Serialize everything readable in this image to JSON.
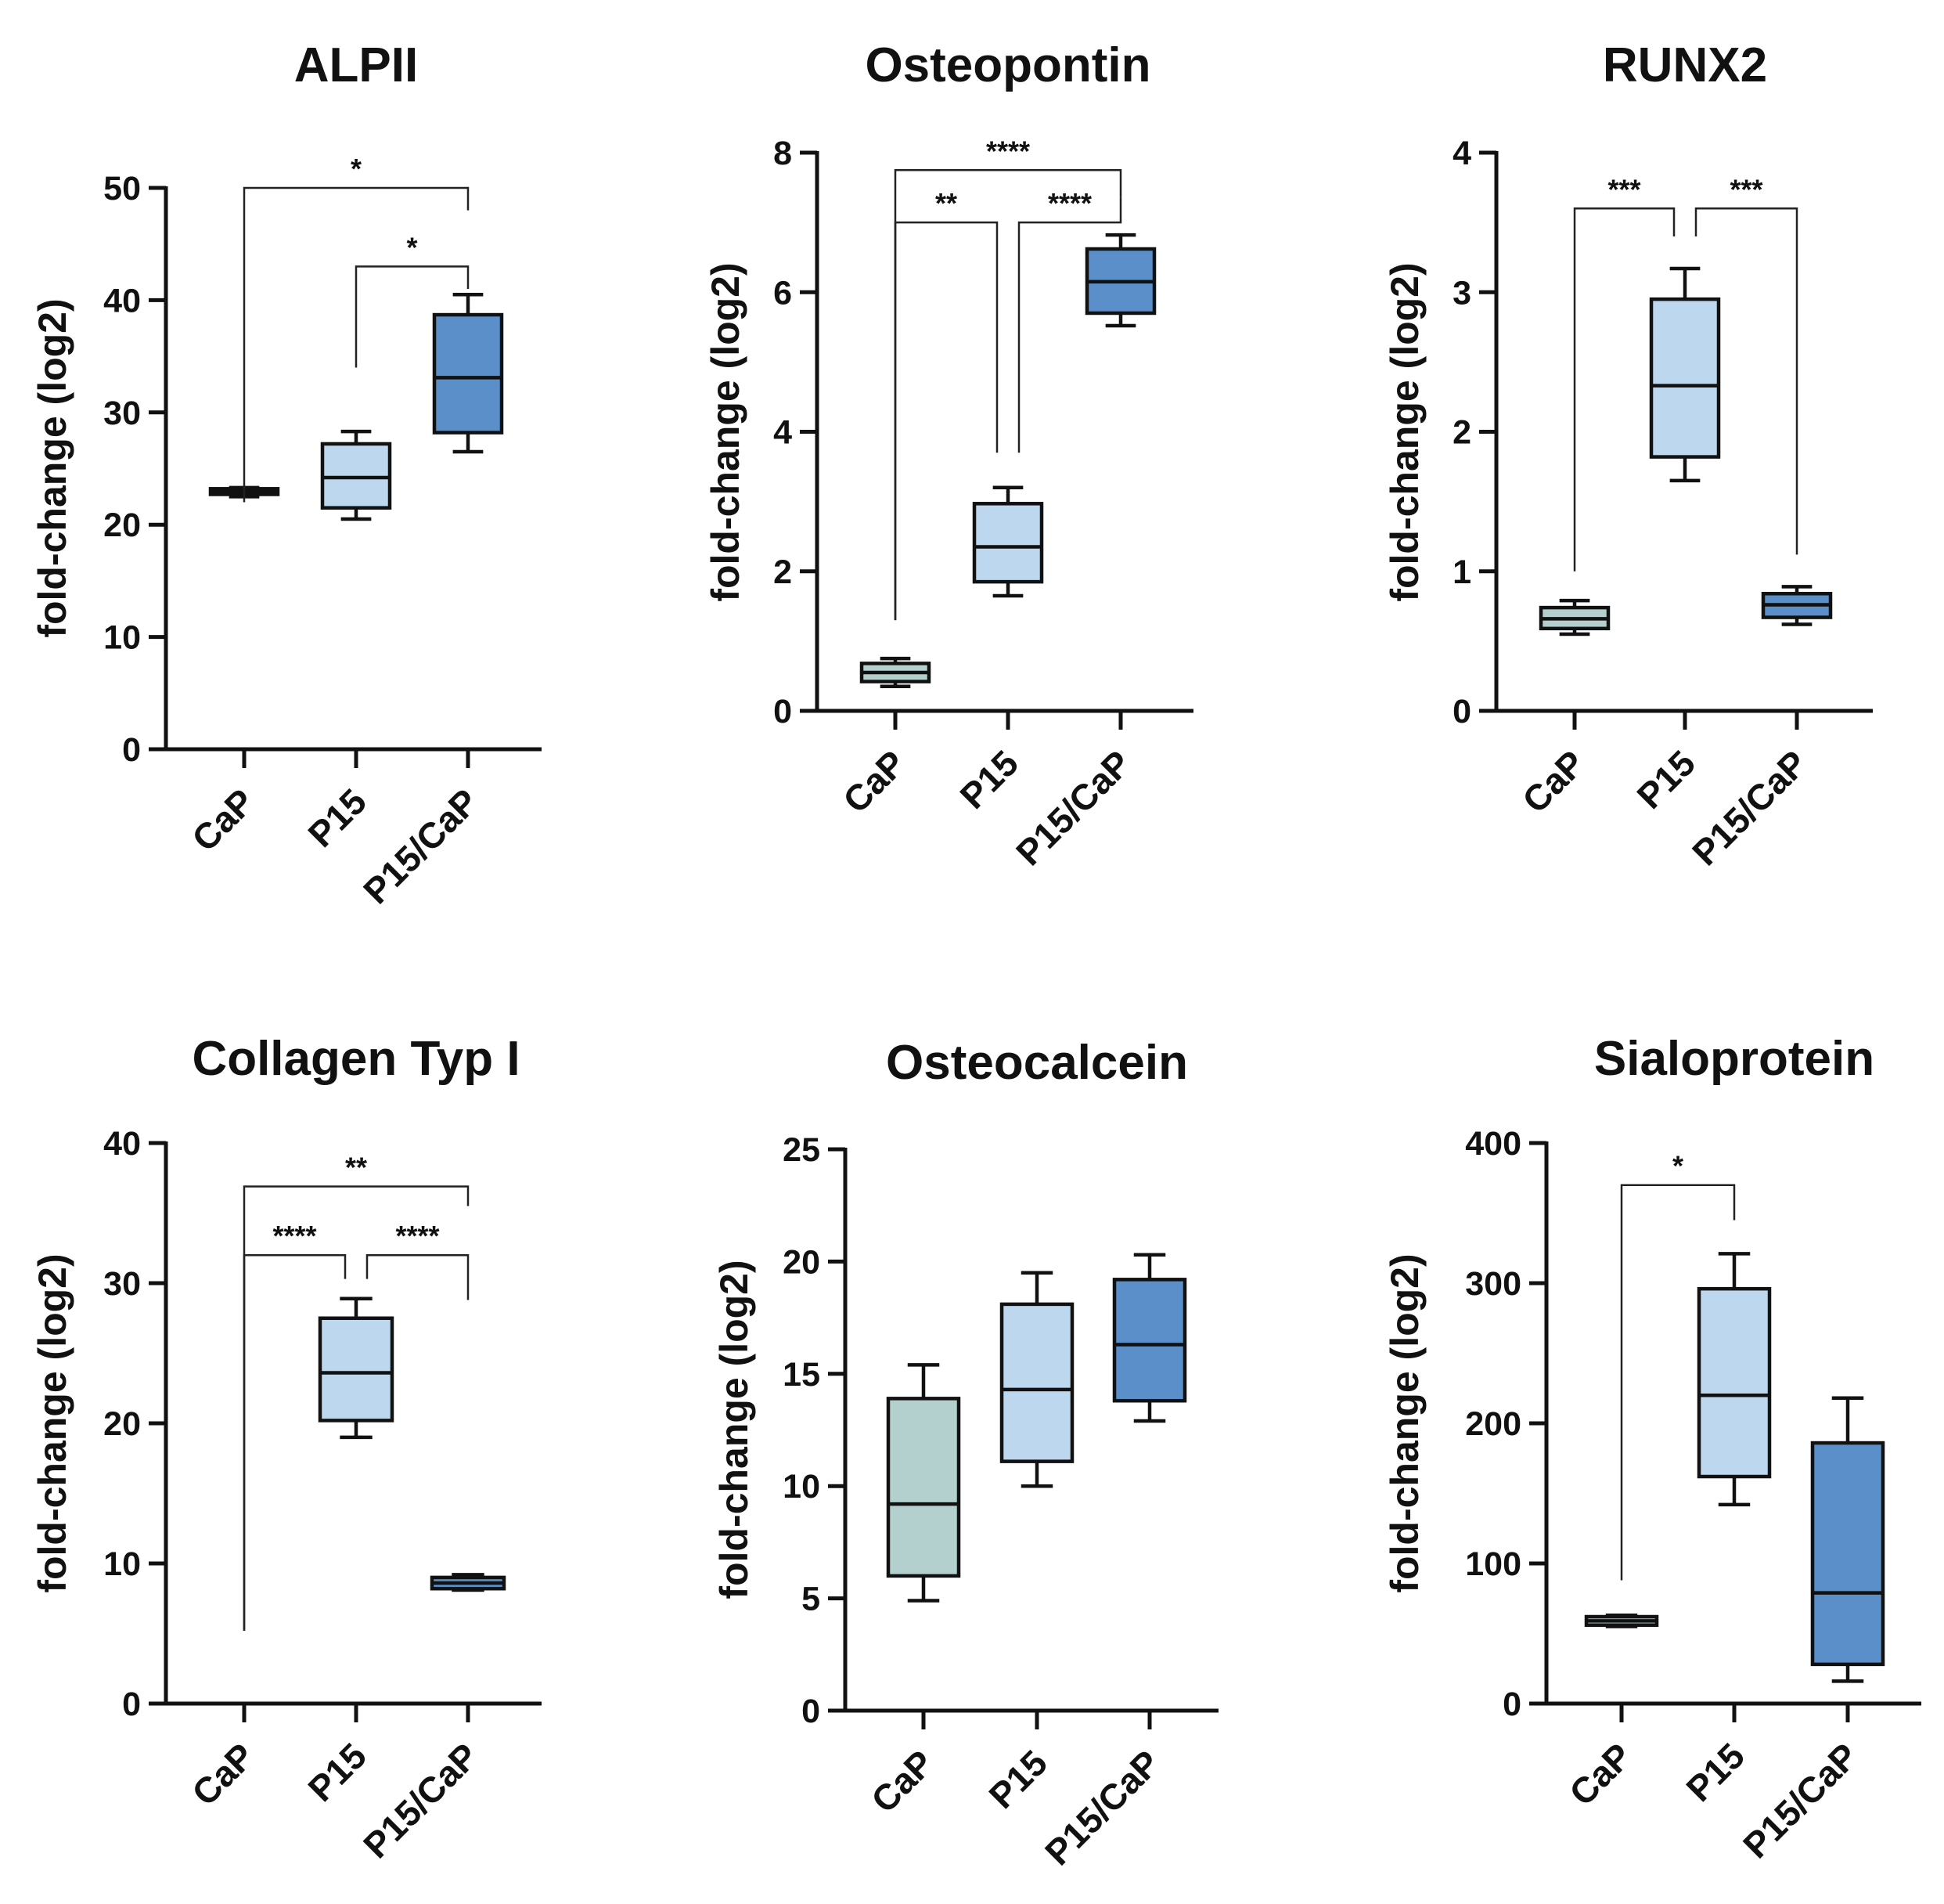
{
  "colors": {
    "CaP": "#b3cfce",
    "P15": "#bdd7ee",
    "P15/CaP": "#5b8fca"
  },
  "chart_data": [
    {
      "type": "box",
      "title": "ALPII",
      "ylabel": "fold-change (log2)",
      "categories": [
        "CaP",
        "P15",
        "P15/CaP"
      ],
      "ylim": [
        0,
        50
      ],
      "yticks": [
        0,
        10,
        20,
        30,
        40,
        50
      ],
      "ytick_labels": [
        "0",
        "10",
        "20",
        "30",
        "40",
        "50"
      ],
      "boxes": [
        {
          "min": 22.5,
          "q1": 22.7,
          "median": 22.9,
          "q3": 23.2,
          "max": 23.3
        },
        {
          "min": 20.5,
          "q1": 21.5,
          "median": 24.2,
          "q3": 27.2,
          "max": 28.3
        },
        {
          "min": 26.5,
          "q1": 28.2,
          "median": 33.1,
          "q3": 38.7,
          "max": 40.5
        }
      ],
      "brackets": [
        {
          "from": 0,
          "to": 2,
          "label": "*",
          "y": 50,
          "drop_from": 22,
          "drop_to": 48
        },
        {
          "from": 1,
          "to": 2,
          "label": "*",
          "y": 43,
          "drop_from": 34,
          "drop_to": 41
        }
      ]
    },
    {
      "type": "box",
      "title": "Osteopontin",
      "ylabel": "fold-change (log2)",
      "categories": [
        "CaP",
        "P15",
        "P15/CaP"
      ],
      "ylim": [
        0,
        8
      ],
      "yticks": [
        0,
        2,
        4,
        6,
        8
      ],
      "ytick_labels": [
        "0",
        "2",
        "4",
        "6",
        "8"
      ],
      "boxes": [
        {
          "min": 0.35,
          "q1": 0.42,
          "median": 0.55,
          "q3": 0.68,
          "max": 0.75
        },
        {
          "min": 1.65,
          "q1": 1.85,
          "median": 2.35,
          "q3": 2.97,
          "max": 3.2
        },
        {
          "min": 5.52,
          "q1": 5.7,
          "median": 6.15,
          "q3": 6.62,
          "max": 6.82
        }
      ],
      "brackets": [
        {
          "from": 0,
          "to": 2,
          "label": "****",
          "y": 7.75,
          "drop_from": 1.3,
          "drop_to": 7.35
        },
        {
          "from": 0,
          "to": 1,
          "label": "**",
          "y": 7.0,
          "drop_from": 1.3,
          "drop_to": 3.7
        },
        {
          "from": 1,
          "to": 2,
          "label": "****",
          "y": 7.0,
          "drop_from": 3.7,
          "drop_to": 7.35
        }
      ]
    },
    {
      "type": "box",
      "title": "RUNX2",
      "ylabel": "fold-change (log2)",
      "categories": [
        "CaP",
        "P15",
        "P15/CaP"
      ],
      "ylim": [
        0,
        4
      ],
      "yticks": [
        0,
        1,
        2,
        3,
        4
      ],
      "ytick_labels": [
        "0",
        "1",
        "2",
        "3",
        "4"
      ],
      "boxes": [
        {
          "min": 0.55,
          "q1": 0.59,
          "median": 0.66,
          "q3": 0.74,
          "max": 0.79
        },
        {
          "min": 1.65,
          "q1": 1.82,
          "median": 2.33,
          "q3": 2.95,
          "max": 3.17
        },
        {
          "min": 0.62,
          "q1": 0.67,
          "median": 0.76,
          "q3": 0.84,
          "max": 0.89
        }
      ],
      "brackets": [
        {
          "from": 0,
          "to": 1,
          "label": "***",
          "y": 3.6,
          "drop_from": 1.0,
          "drop_to": 3.4
        },
        {
          "from": 1,
          "to": 2,
          "label": "***",
          "y": 3.6,
          "drop_from": 3.4,
          "drop_to": 1.12
        }
      ]
    },
    {
      "type": "box",
      "title": "Collagen Typ I",
      "ylabel": "fold-change (log2)",
      "categories": [
        "CaP",
        "P15",
        "P15/CaP"
      ],
      "ylim": [
        0,
        40
      ],
      "yticks": [
        0,
        10,
        20,
        30,
        40
      ],
      "ytick_labels": [
        "0",
        "10",
        "20",
        "30",
        "40"
      ],
      "boxes": [
        null,
        {
          "min": 19.0,
          "q1": 20.2,
          "median": 23.6,
          "q3": 27.5,
          "max": 28.9
        },
        {
          "min": 8.1,
          "q1": 8.2,
          "median": 8.6,
          "q3": 9.0,
          "max": 9.2
        }
      ],
      "brackets": [
        {
          "from": 0,
          "to": 2,
          "label": "**",
          "y": 36.9,
          "drop_from": 5.2,
          "drop_to": 35.5
        },
        {
          "from": 0,
          "to": 1,
          "label": "****",
          "y": 32.0,
          "drop_from": 5.2,
          "drop_to": 30.3
        },
        {
          "from": 1,
          "to": 2,
          "label": "****",
          "y": 32.0,
          "drop_from": 30.3,
          "drop_to": 28.8
        }
      ]
    },
    {
      "type": "box",
      "title": "Osteocalcein",
      "ylabel": "fold-change (log2)",
      "categories": [
        "CaP",
        "P15",
        "P15/CaP"
      ],
      "ylim": [
        0,
        25
      ],
      "yticks": [
        0,
        5,
        10,
        15,
        20,
        25
      ],
      "ytick_labels": [
        "0",
        "5",
        "10",
        "15",
        "20",
        "25"
      ],
      "boxes": [
        {
          "min": 4.9,
          "q1": 6.0,
          "median": 9.2,
          "q3": 13.9,
          "max": 15.4
        },
        {
          "min": 10.0,
          "q1": 11.1,
          "median": 14.3,
          "q3": 18.1,
          "max": 19.5
        },
        {
          "min": 12.9,
          "q1": 13.8,
          "median": 16.3,
          "q3": 19.2,
          "max": 20.3
        }
      ],
      "brackets": []
    },
    {
      "type": "box",
      "title": "Sialoprotein",
      "ylabel": "fold-change (log2)",
      "categories": [
        "CaP",
        "P15",
        "P15/CaP"
      ],
      "ylim": [
        0,
        400
      ],
      "yticks": [
        0,
        100,
        200,
        300,
        400
      ],
      "ytick_labels": [
        "0",
        "100",
        "200",
        "300",
        "400"
      ],
      "boxes": [
        {
          "min": 55,
          "q1": 56,
          "median": 59,
          "q3": 62,
          "max": 63
        },
        {
          "min": 142,
          "q1": 162,
          "median": 220,
          "q3": 296,
          "max": 321
        },
        {
          "min": 16,
          "q1": 28,
          "median": 79,
          "q3": 186,
          "max": 218
        }
      ],
      "brackets": [
        {
          "from": 0,
          "to": 1,
          "label": "*",
          "y": 370,
          "drop_from": 88,
          "drop_to": 345
        }
      ]
    }
  ]
}
